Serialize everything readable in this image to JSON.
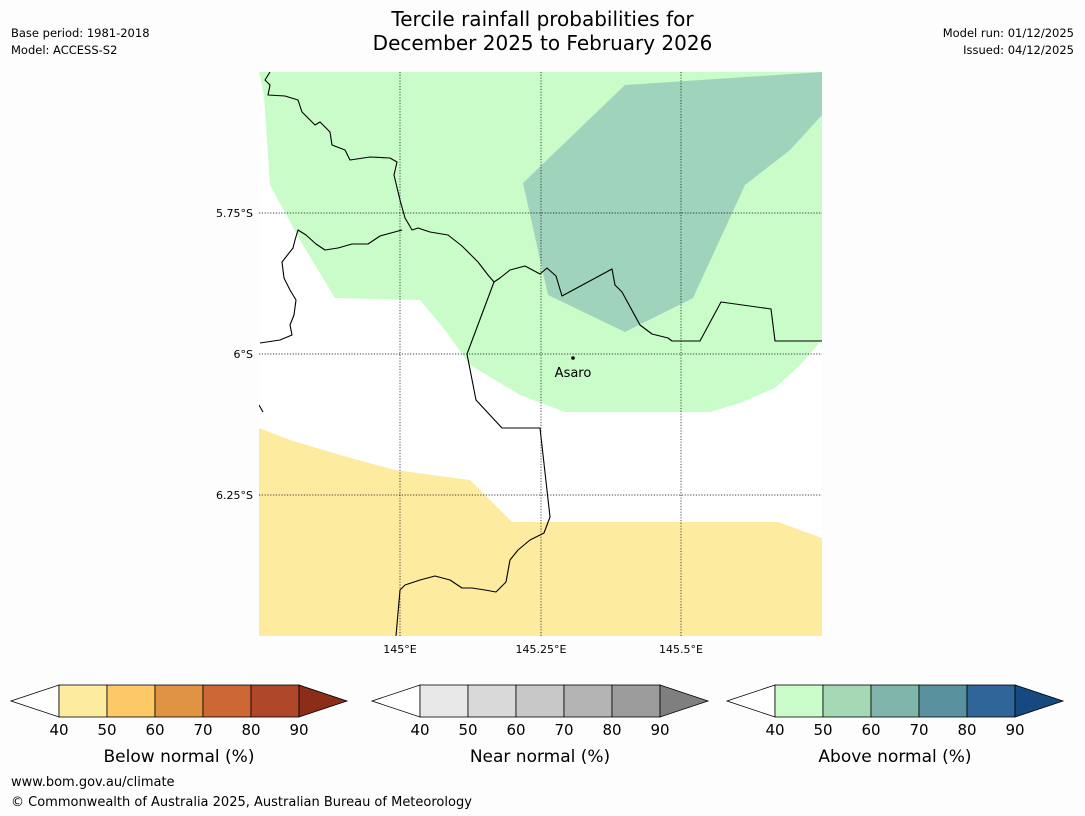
{
  "header": {
    "title_line1": "Tercile rainfall probabilities for",
    "title_line2": "December 2025 to February 2026",
    "base_period": "Base period: 1981-2018",
    "model": "Model: ACCESS-S2",
    "model_run": "Model run: 01/12/2025",
    "issued": "Issued: 04/12/2025"
  },
  "map": {
    "lat_labels": [
      "5.75°S",
      "6°S",
      "6.25°S"
    ],
    "lon_labels": [
      "145°E",
      "145.25°E",
      "145.5°E"
    ],
    "place": {
      "name": "Asaro"
    },
    "colors": {
      "below_40_50": "#fdeba0",
      "above_40_50": "#c9fcc9",
      "above_50_60": "#9fd3bb"
    }
  },
  "legends": [
    {
      "label": "Below normal (%)",
      "ticks": [
        "40",
        "50",
        "60",
        "70",
        "80",
        "90"
      ],
      "colors": [
        "#fdeba0",
        "#fdc966",
        "#e09343",
        "#cd6836",
        "#ae4828",
        "#8c2d19"
      ]
    },
    {
      "label": "Near normal (%)",
      "ticks": [
        "40",
        "50",
        "60",
        "70",
        "80",
        "90"
      ],
      "colors": [
        "#e8e8e8",
        "#d9d9d9",
        "#c8c8c8",
        "#b4b4b4",
        "#9c9c9c",
        "#7f7f7f"
      ]
    },
    {
      "label": "Above normal (%)",
      "ticks": [
        "40",
        "50",
        "60",
        "70",
        "80",
        "90"
      ],
      "colors": [
        "#c9fcc9",
        "#a5d8b5",
        "#80b5ac",
        "#5a919f",
        "#2f6599",
        "#16497f"
      ]
    }
  ],
  "footer": {
    "website": "www.bom.gov.au/climate",
    "copyright": "© Commonwealth of Australia 2025, Australian Bureau of Meteorology"
  }
}
